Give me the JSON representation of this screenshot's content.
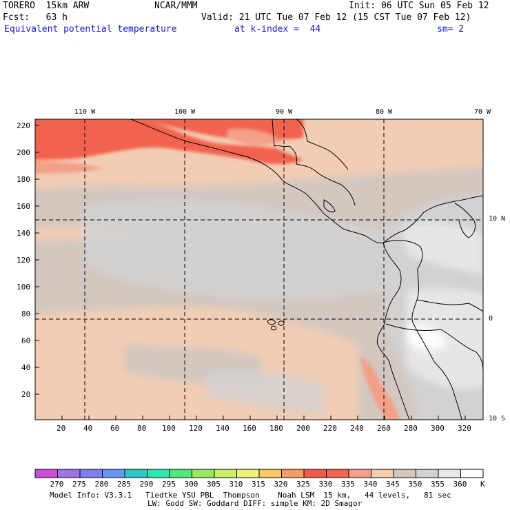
{
  "header": {
    "model": "TORERO  15km ARW",
    "org": "NCAR/MMM",
    "init": "Init: 06 UTC Sun 05 Feb 12",
    "fcst": "Fcst:   63 h",
    "valid": "Valid: 21 UTC Tue 07 Feb 12 (15 CST Tue 07 Feb 12)",
    "field": "Equivalent potential temperature",
    "level": "at k-index =  44",
    "smoothing": "sm= 2",
    "field_color": "#1a1acc"
  },
  "axes": {
    "y_ticks": [
      "220",
      "200",
      "180",
      "160",
      "140",
      "120",
      "100",
      "80",
      "60",
      "40",
      "20"
    ],
    "x_ticks": [
      "20",
      "40",
      "60",
      "80",
      "100",
      "120",
      "140",
      "160",
      "180",
      "200",
      "220",
      "240",
      "260",
      "280",
      "300",
      "320"
    ],
    "lon_labels": [
      "110 W",
      "100 W",
      "90 W",
      "80 W",
      "70 W"
    ],
    "lat_labels": [
      "10 N",
      "0",
      "10 S"
    ]
  },
  "colorbar": {
    "unit": "K",
    "labels": [
      "270",
      "275",
      "280",
      "285",
      "290",
      "295",
      "300",
      "305",
      "310",
      "315",
      "320",
      "325",
      "330",
      "335",
      "340",
      "345",
      "350",
      "355",
      "360"
    ],
    "colors": [
      "#c94fd6",
      "#a273e8",
      "#7f7ff0",
      "#6b95f2",
      "#2ec8c8",
      "#2ee8a8",
      "#50e87a",
      "#98e860",
      "#c8f064",
      "#f0f07a",
      "#f8c864",
      "#f89a64",
      "#f05a4a",
      "#f26450",
      "#f4a088",
      "#f2cdb4",
      "#d2c8c0",
      "#d2d2d2",
      "#e8e8e8",
      "#ffffff"
    ]
  },
  "footer": {
    "line1": "Model Info: V3.3.1   Tiedtke YSU PBL  Thompson    Noah LSM  15 km,   44 levels,   81 sec",
    "line2": "LW: Godd SW: Goddard DIFF: simple KM: 2D Smagor"
  }
}
